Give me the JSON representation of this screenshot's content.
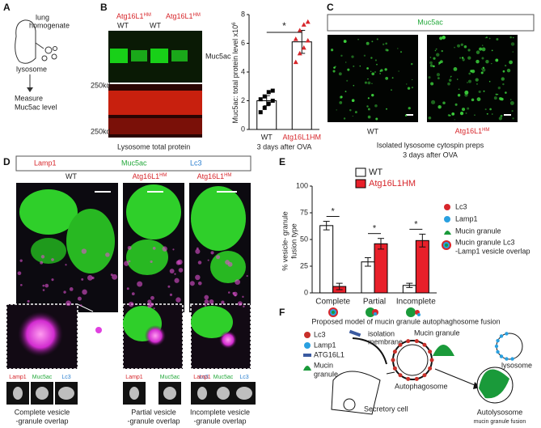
{
  "panel_labels": [
    "A",
    "B",
    "C",
    "D",
    "E",
    "F"
  ],
  "panel_a": {
    "lines": [
      "lung",
      "homogenate"
    ],
    "lysosome": "lysosome",
    "measure": [
      "Measure",
      "Muc5ac level"
    ]
  },
  "panel_b": {
    "lane_groups": [
      {
        "text": "Atg16L1",
        "sup": "HM"
      },
      {
        "text": "Atg16L1",
        "sup": "HM"
      }
    ],
    "wt": [
      "WT",
      "WT"
    ],
    "band": "Muc5ac",
    "marker": [
      "250kd",
      "250kd"
    ],
    "caption": "Lysosome total protein"
  },
  "panel_c": {
    "stain": "Muc5ac",
    "wt": "WT",
    "mut": {
      "text": "Atg16L1",
      "sup": "HM"
    },
    "caption": [
      "Isolated lysosome cytospin preps",
      "3 days after OVA"
    ]
  },
  "panel_d": {
    "stains": [
      "Lamp1",
      "Muc5ac",
      "Lc3"
    ],
    "columns": [
      {
        "text": "WT",
        "sup": ""
      },
      {
        "text": "Atg16L1",
        "sup": "HM"
      },
      {
        "text": "Atg16L1",
        "sup": "HM"
      }
    ],
    "channel_labels": [
      [
        "Lamp1",
        "Muc5ac",
        "Lc3"
      ],
      [
        "Lamp1",
        "Muc5ac",
        "Lc3"
      ],
      [
        "Lamp1",
        "Muc5ac",
        "Lc3"
      ]
    ],
    "captions": [
      [
        "Complete vesicle",
        "-granule overlap"
      ],
      [
        "Partial vesicle",
        "-granule overlap"
      ],
      [
        "Incomplete vesicle",
        "-granule overlap"
      ]
    ]
  },
  "panel_e_key": {
    "items": [
      "Lc3",
      "Lamp1",
      "Mucin granule"
    ],
    "overlap": [
      "Mucin granule Lc3",
      "-Lamp1 vesicle overlap"
    ]
  },
  "panel_f": {
    "title": "Proposed model of mucin granule autophaghosome fusion",
    "key": [
      "Lc3",
      "Lamp1",
      "ATG16L1",
      "Mucin",
      "granule"
    ],
    "isolation": [
      "isolation",
      "membrane"
    ],
    "mucin_granule": "Mucin granule",
    "lysosome": "lysosome",
    "autophagosome": "Autophagosome",
    "secretory": "Secretory cell",
    "autolysosome": "Autolysosome",
    "fusion": "mucin granule fusion"
  },
  "chart_data": [
    {
      "type": "bar",
      "y_label": {
        "text": "Muc5ac: total protein level x10",
        "sup": "6"
      },
      "categories": [
        "WT",
        "Atg16L1HM"
      ],
      "values": [
        2.0,
        6.1
      ],
      "errors": [
        0.35,
        0.8
      ],
      "points": [
        [
          1.2,
          1.5,
          1.8,
          2.0,
          2.1,
          2.3,
          2.6,
          2.7
        ],
        [
          4.7,
          5.3,
          5.7,
          6.2,
          6.3,
          6.9,
          7.3,
          7.5
        ]
      ],
      "point_colors": [
        "#000000",
        "#d7262b"
      ],
      "point_markers": [
        "square",
        "triangle"
      ],
      "edgecolor": "#000000",
      "color": "#ffffff",
      "x_label": "3 days after OVA",
      "significance": "*",
      "ylim": [
        0,
        8
      ],
      "yticks": [
        0,
        2,
        4,
        6,
        8
      ]
    },
    {
      "type": "grouped_bar",
      "y_label": [
        "% vesicle- granule",
        "fusion type"
      ],
      "categories": [
        "Complete",
        "Partial",
        "Incomplete"
      ],
      "series": [
        {
          "name": "WT",
          "color": "#ffffff",
          "values": [
            63,
            29,
            7
          ],
          "errors": [
            4,
            4,
            2
          ]
        },
        {
          "name": "Atg16L1HM",
          "color": "#e8202a",
          "values": [
            6,
            46,
            49
          ],
          "errors": [
            3,
            5,
            6
          ]
        }
      ],
      "edgecolor": "#000000",
      "significance": [
        "*",
        "*",
        "*"
      ],
      "legend": "top",
      "ylim": [
        0,
        100
      ],
      "yticks": [
        0,
        25,
        50,
        75,
        100
      ]
    }
  ]
}
